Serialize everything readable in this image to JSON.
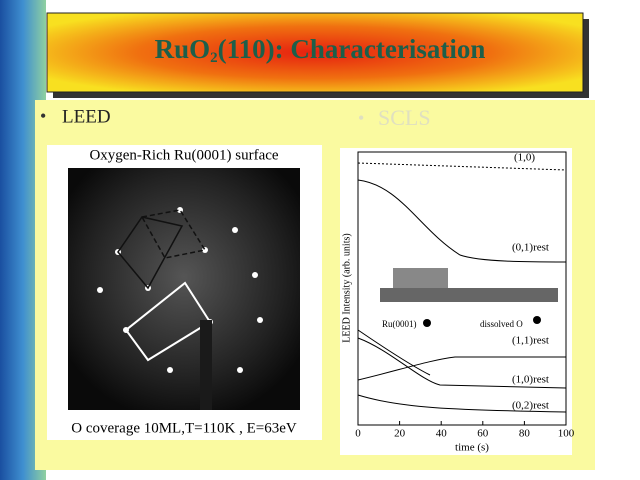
{
  "slide": {
    "title": {
      "main": "RuO",
      "subscript": "2",
      "rest": "(110): Characterisation"
    },
    "bullets": [
      "LEED",
      "SCLS"
    ],
    "leed_image": {
      "caption_top": "Oxygen-Rich Ru(0001) surface",
      "caption_bottom": "O coverage 10ML,T=110K , E=63eV"
    },
    "plot": {
      "y_label": "LEED Intensity (arb. units)",
      "x_label": "time (s)",
      "x_ticks": [
        "0",
        "20",
        "40",
        "60",
        "80",
        "100"
      ],
      "curve_labels": [
        "(1,0)",
        "(0,1)rest",
        "(1,1)rest",
        "(1,0)rest",
        "(0,2)rest"
      ],
      "legend": [
        "Ru(0001)",
        "dissolved O"
      ]
    }
  }
}
